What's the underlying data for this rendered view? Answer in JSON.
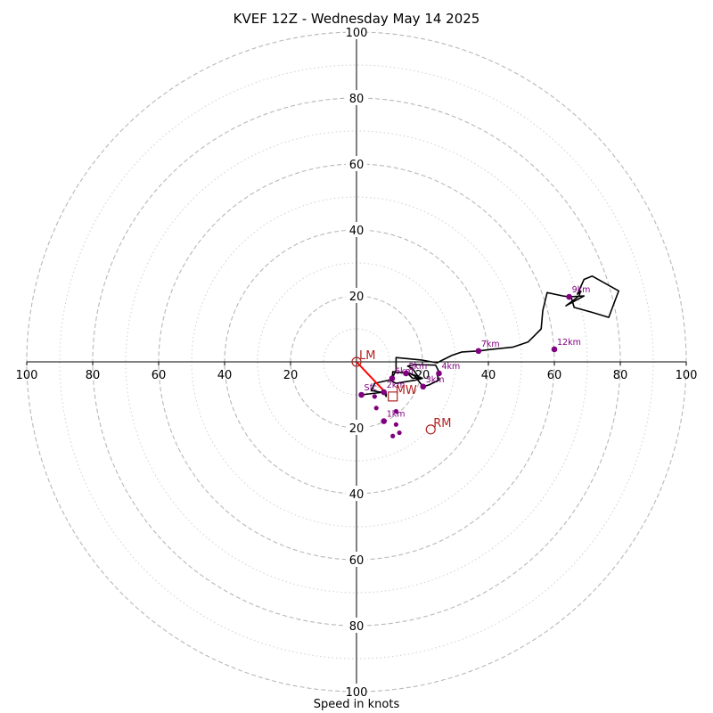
{
  "title": "KVEF 12Z - Wednesday May 14 2025",
  "xlabel": "Speed in knots",
  "colors": {
    "ring_major": "#b8b8b8",
    "ring_minor": "#d0d0d0",
    "trace": "#000000",
    "height_marker": "#800080",
    "storm_motion": "#b22222",
    "shear_vector": "#ff0000"
  },
  "chart_data": {
    "type": "scatter",
    "title": "KVEF 12Z - Wednesday May 14 2025",
    "xlabel": "Speed in knots",
    "ylabel": "",
    "xlim": [
      -100,
      100
    ],
    "ylim": [
      -100,
      100
    ],
    "axis_tick_labels": [
      "100",
      "80",
      "60",
      "40",
      "20",
      "20",
      "40",
      "60",
      "80",
      "100"
    ],
    "rings_major": [
      20,
      40,
      60,
      80,
      100
    ],
    "rings_minor": [
      10,
      30,
      50,
      70,
      90
    ],
    "hodograph_trace": [
      [
        1.5,
        -10
      ],
      [
        8.3,
        -9.2
      ],
      [
        9,
        -10.5
      ],
      [
        9,
        -9.5
      ],
      [
        4.5,
        -8.7
      ],
      [
        5.5,
        -6.5
      ],
      [
        10,
        -5.5
      ],
      [
        12,
        -6.5
      ],
      [
        18,
        -5.5
      ],
      [
        20,
        -5
      ],
      [
        15,
        -3
      ],
      [
        17,
        -5
      ],
      [
        19,
        -4.8
      ],
      [
        18,
        -3.5
      ],
      [
        17,
        -2
      ],
      [
        15.5,
        -1.3
      ],
      [
        17.5,
        -0.8
      ],
      [
        24,
        -1
      ],
      [
        25,
        -3
      ],
      [
        24.5,
        -4
      ],
      [
        25,
        -5.5
      ],
      [
        22,
        -7
      ],
      [
        20.2,
        -7.5
      ],
      [
        17.5,
        -4.2
      ],
      [
        16,
        -3.5
      ],
      [
        11,
        -3
      ],
      [
        10.8,
        -5
      ],
      [
        12,
        -2.5
      ],
      [
        12,
        1.3
      ],
      [
        20,
        0.5
      ],
      [
        24.5,
        -0.3
      ],
      [
        26,
        0.5
      ],
      [
        29,
        2
      ],
      [
        32,
        3
      ],
      [
        37,
        3.3
      ],
      [
        41,
        3.8
      ],
      [
        47.5,
        4.5
      ],
      [
        52,
        6
      ],
      [
        53.5,
        7.5
      ],
      [
        56,
        10
      ],
      [
        56.5,
        15.5
      ],
      [
        57.8,
        21
      ],
      [
        62.5,
        20
      ],
      [
        64.5,
        19.7
      ],
      [
        69,
        20
      ],
      [
        63.5,
        17
      ],
      [
        67.5,
        20
      ],
      [
        68,
        21.5
      ],
      [
        67,
        20.5
      ],
      [
        69,
        25
      ],
      [
        71.5,
        26
      ],
      [
        79.5,
        21.5
      ],
      [
        76.5,
        13.5
      ],
      [
        71.5,
        15
      ],
      [
        66,
        16.5
      ],
      [
        65,
        20
      ]
    ],
    "height_points": [
      {
        "label": "Sfc",
        "u": 1.5,
        "v": -10
      },
      {
        "label": "2km",
        "u": 8.3,
        "v": -9.2
      },
      {
        "label": "1km",
        "u": 8.3,
        "v": -18
      },
      {
        "label": "3km",
        "u": 20.2,
        "v": -7.5
      },
      {
        "label": "4km",
        "u": 25,
        "v": -3.5
      },
      {
        "label": "5km",
        "u": 15,
        "v": -3.5
      },
      {
        "label": "6km",
        "u": 10.8,
        "v": -5
      },
      {
        "label": "7km",
        "u": 37,
        "v": 3.3
      },
      {
        "label": "9km",
        "u": 64.5,
        "v": 19.7
      },
      {
        "label": "12km",
        "u": 60,
        "v": 3.8
      }
    ],
    "extra_points": [
      [
        5.5,
        -10.5
      ],
      [
        6,
        -14
      ],
      [
        12,
        -15
      ],
      [
        12,
        -19
      ],
      [
        11,
        -22.5
      ],
      [
        13,
        -21.5
      ]
    ],
    "storm_motion": [
      {
        "label": "LM",
        "u": 0,
        "v": 0,
        "marker": "circle"
      },
      {
        "label": "MW",
        "u": 11,
        "v": -10.5,
        "marker": "square"
      },
      {
        "label": "RM",
        "u": 22.5,
        "v": -20.5,
        "marker": "circle"
      }
    ],
    "shear_vector": [
      [
        0,
        0
      ],
      [
        8.5,
        -9
      ]
    ]
  }
}
